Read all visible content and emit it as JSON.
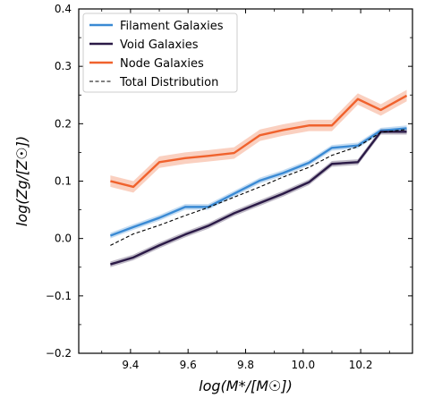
{
  "chart_data": {
    "type": "line",
    "title": "",
    "xlabel": "log(M*/[M☉])",
    "ylabel": "log(Zg/[Z☉])",
    "xlim": [
      9.22,
      10.38
    ],
    "ylim": [
      -0.2,
      0.4
    ],
    "xticks": [
      9.4,
      9.6,
      9.8,
      10.0,
      10.2
    ],
    "yticks": [
      -0.2,
      -0.1,
      0.0,
      0.1,
      0.2,
      0.3,
      0.4
    ],
    "xtick_labels": [
      "9.4",
      "9.6",
      "9.8",
      "10.0",
      "10.2"
    ],
    "ytick_labels": [
      "−0.2",
      "−0.1",
      "0.0",
      "0.1",
      "0.2",
      "0.3",
      "0.4"
    ],
    "grid": false,
    "legend_position": "top-left",
    "x": [
      9.33,
      9.41,
      9.5,
      9.59,
      9.67,
      9.76,
      9.85,
      9.93,
      10.02,
      10.1,
      10.19,
      10.27,
      10.36
    ],
    "series": [
      {
        "name": "Filament Galaxies",
        "color": "#3a8ad4",
        "style": "solid",
        "values": [
          0.005,
          0.02,
          0.036,
          0.055,
          0.055,
          0.078,
          0.101,
          0.114,
          0.132,
          0.158,
          0.162,
          0.188,
          0.192
        ],
        "band": 0.005
      },
      {
        "name": "Void Galaxies",
        "color": "#2b1a47",
        "style": "solid",
        "values": [
          -0.045,
          -0.033,
          -0.012,
          0.007,
          0.022,
          0.044,
          0.062,
          0.078,
          0.098,
          0.13,
          0.133,
          0.186,
          0.186
        ],
        "band": 0.005
      },
      {
        "name": "Node Galaxies",
        "color": "#f0622d",
        "style": "solid",
        "values": [
          0.1,
          0.09,
          0.133,
          0.14,
          0.144,
          0.149,
          0.18,
          0.189,
          0.197,
          0.197,
          0.243,
          0.224,
          0.249
        ],
        "band": 0.01
      },
      {
        "name": "Total Distribution",
        "color": "#000000",
        "style": "dashed",
        "values": [
          -0.012,
          0.008,
          0.023,
          0.04,
          0.054,
          0.072,
          0.09,
          0.107,
          0.124,
          0.145,
          0.16,
          0.185,
          0.19
        ]
      }
    ]
  }
}
